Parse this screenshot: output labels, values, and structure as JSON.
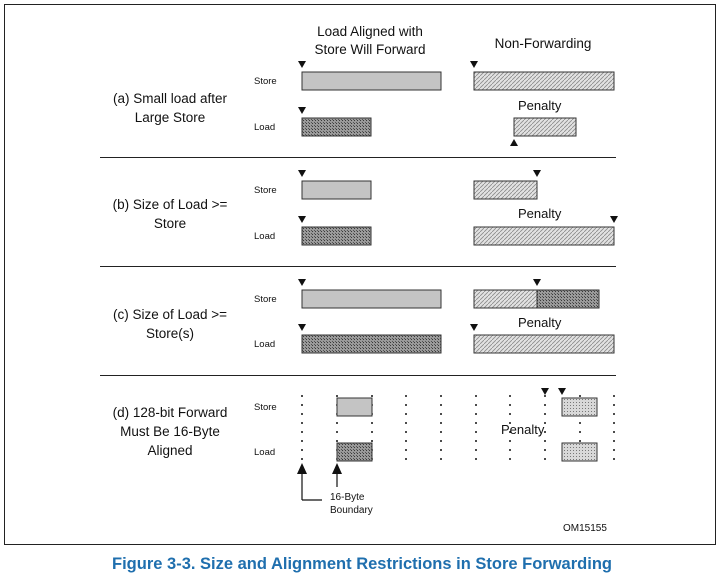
{
  "header": {
    "col_forward": "Load Aligned with\nStore Will Forward",
    "col_forward_l1": "Load Aligned with",
    "col_forward_l2": "Store Will Forward",
    "col_nonforward": "Non-Forwarding"
  },
  "sections": [
    {
      "label_l1": "(a) Small load after",
      "label_l2": "Large Store",
      "row_top": "Store",
      "row_bottom": "Load",
      "penalty": "Penalty"
    },
    {
      "label_l1": "(b) Size of Load >=",
      "label_l2": "Store",
      "row_top": "Store",
      "row_bottom": "Load",
      "penalty": "Penalty"
    },
    {
      "label_l1": "(c) Size of Load >=",
      "label_l2": "Store(s)",
      "row_top": "Store",
      "row_bottom": "Load",
      "penalty": "Penalty"
    },
    {
      "label_l1": "(d) 128-bit Forward",
      "label_l2": "Must Be 16-Byte",
      "label_l3": "Aligned",
      "row_top": "Store",
      "row_bottom": "Load",
      "penalty": "Penalty"
    }
  ],
  "boundary_label_l1": "16-Byte",
  "boundary_label_l2": "Boundary",
  "figure_id": "OM15155",
  "caption": "Figure 3-3.  Size and Alignment Restrictions in Store Forwarding",
  "colors": {
    "caption": "#1f6fae",
    "store_fill": "#c8c8c8",
    "load_fill": "#8a8a8a",
    "hatch_light": "#d4d4d4"
  }
}
